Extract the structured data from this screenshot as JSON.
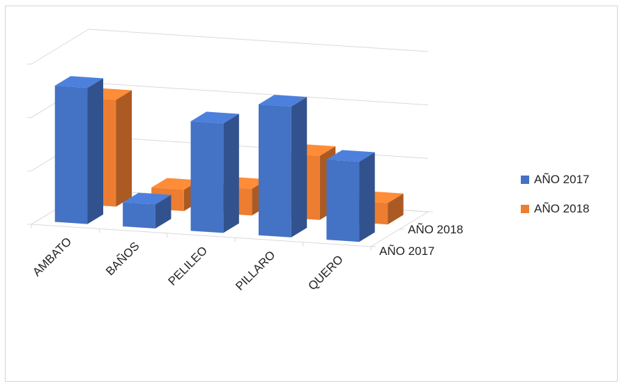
{
  "chart_data": {
    "type": "bar",
    "subtype": "3d-clustered-depth",
    "title": "",
    "categories": [
      "AMBATO",
      "BAÑOS",
      "PELILEO",
      "PILLARO",
      "QUERO"
    ],
    "series": [
      {
        "name": "AÑO 2017",
        "color": "#4472C4",
        "values": [
          2.55,
          0.45,
          2.05,
          2.45,
          1.5
        ]
      },
      {
        "name": "AÑO 2018",
        "color": "#ED7D31",
        "values": [
          2.0,
          0.4,
          0.5,
          1.2,
          0.4
        ]
      }
    ],
    "depth_labels": [
      "AÑO 2018",
      "AÑO 2017"
    ],
    "ylim": [
      0,
      3
    ],
    "gridlines": true,
    "legend_position": "right"
  }
}
